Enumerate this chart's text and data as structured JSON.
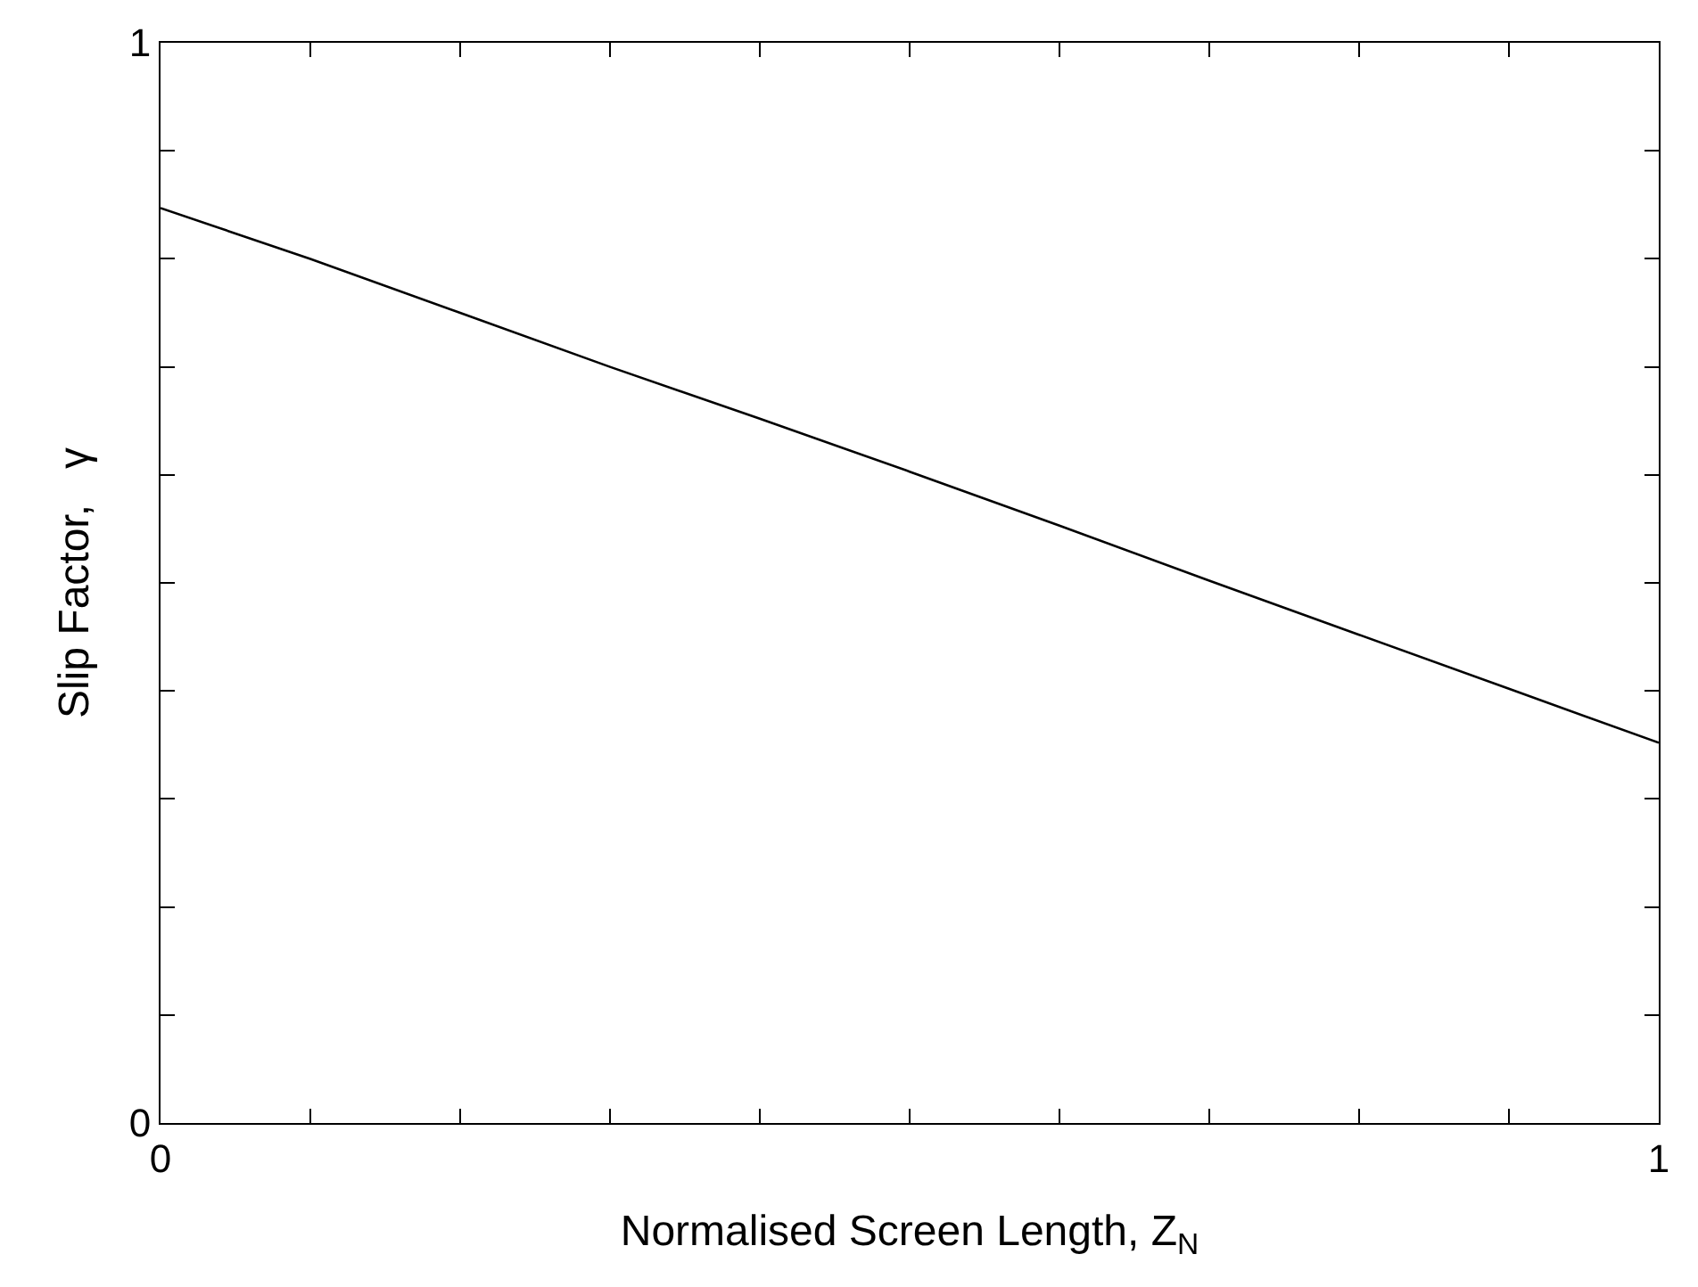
{
  "chart_data": {
    "type": "line",
    "xlabel": "Normalised Screen Length, Z$_{N}$",
    "ylabel": "Slip Factor,   γ",
    "x": [
      0,
      0.1,
      0.2,
      0.3,
      0.4,
      0.5,
      0.6,
      0.7,
      0.8,
      0.9,
      1
    ],
    "series": [
      {
        "color": "#000000",
        "values": [
          0.847,
          0.8,
          0.75,
          0.7,
          0.652,
          0.603,
          0.553,
          0.502,
          0.452,
          0.402,
          0.352
        ]
      }
    ],
    "xlim": [
      0,
      1
    ],
    "ylim": [
      0,
      1
    ],
    "xticks": [
      0,
      {
        "value": 0.1,
        "label": null
      },
      {
        "value": 0.2,
        "label": null
      },
      {
        "value": 0.3,
        "label": null
      },
      {
        "value": 0.4,
        "label": null
      },
      {
        "value": 0.5,
        "label": null
      },
      {
        "value": 0.6,
        "label": null
      },
      {
        "value": 0.7,
        "label": null
      },
      {
        "value": 0.8,
        "label": null
      },
      {
        "value": 0.9,
        "label": null
      },
      1
    ],
    "yticks": [
      0,
      {
        "value": 0.1,
        "label": null
      },
      {
        "value": 0.2,
        "label": null
      },
      {
        "value": 0.3,
        "label": null
      },
      {
        "value": 0.4,
        "label": null
      },
      {
        "value": 0.5,
        "label": null
      },
      {
        "value": 0.6,
        "label": null
      },
      {
        "value": 0.7,
        "label": null
      },
      {
        "value": 0.8,
        "label": null
      },
      {
        "value": 0.9,
        "label": null
      },
      1
    ],
    "marker": "none",
    "line_style": "solid"
  }
}
